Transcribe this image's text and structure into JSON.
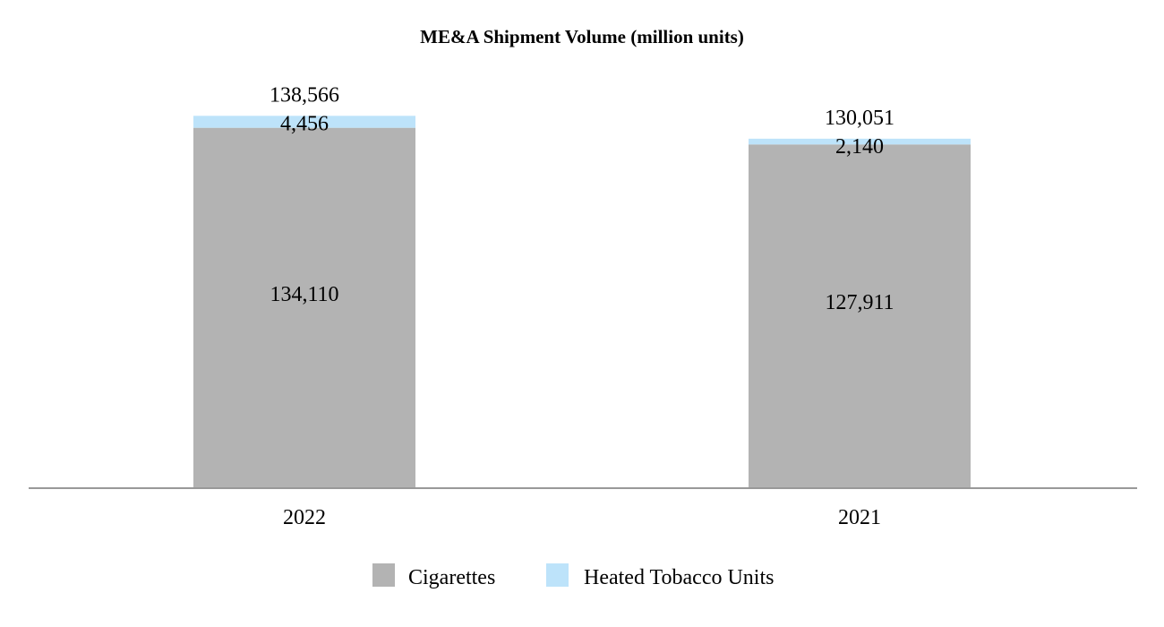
{
  "chart_data": {
    "type": "bar",
    "stacked": true,
    "title": "ME&A Shipment Volume (million units)",
    "xlabel": "",
    "ylabel": "",
    "categories": [
      "2022",
      "2021"
    ],
    "series": [
      {
        "name": "Cigarettes",
        "values": [
          134110,
          127911
        ],
        "labels": [
          "134,110",
          "127,911"
        ],
        "color": "#b3b3b3"
      },
      {
        "name": "Heated Tobacco Units",
        "values": [
          4456,
          2140
        ],
        "labels": [
          "4,456",
          "2,140"
        ],
        "color": "#bde3fa"
      }
    ],
    "totals": [
      138566,
      130051
    ],
    "total_labels": [
      "138,566",
      "130,051"
    ],
    "ylim": [
      0,
      145000
    ],
    "grid": false,
    "legend": "bottom-center",
    "axis_color": "#999999"
  }
}
